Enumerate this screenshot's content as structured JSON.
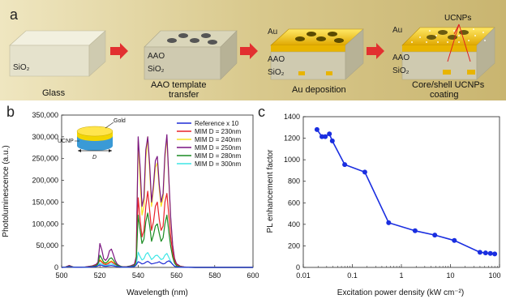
{
  "panel_a": {
    "letter": "a",
    "steps": [
      {
        "caption": [
          "Glass"
        ],
        "labels": [
          "SiO₂"
        ]
      },
      {
        "caption": [
          "AAO template",
          "transfer"
        ],
        "labels": [
          "AAO",
          "SiO₂"
        ]
      },
      {
        "caption": [
          "Au deposition"
        ],
        "labels": [
          "Au",
          "AAO",
          "SiO₂"
        ]
      },
      {
        "caption": [
          "Core/shell UCNPs",
          "coating"
        ],
        "labels": [
          "Au",
          "AAO",
          "SiO₂"
        ],
        "callout": "UCNPs"
      }
    ],
    "colors": {
      "background": "#d7c88f",
      "glass": "#e8e6d2",
      "aao": "#d4d0b2",
      "gold": "#f2c200",
      "arrow": "#e23030"
    }
  },
  "chart_data": [
    {
      "panel": "b",
      "type": "line",
      "xlabel": "Wavelength (nm)",
      "ylabel": "Photoluminescence (a.u.)",
      "xlim": [
        500,
        600
      ],
      "ylim": [
        0,
        350000
      ],
      "xticks": [
        500,
        520,
        540,
        560,
        580,
        600
      ],
      "yticks": [
        0,
        50000,
        100000,
        150000,
        200000,
        250000,
        300000,
        350000
      ],
      "ytick_labels": [
        "0",
        "50,000",
        "100,000",
        "150,000",
        "200,000",
        "250,000",
        "300,000",
        "350,000"
      ],
      "legend_position": "top-right",
      "inset_labels": {
        "gold": "Gold",
        "ucnp": "UCNP",
        "d": "D"
      },
      "x": [
        500,
        502,
        504,
        506,
        508,
        510,
        512,
        514,
        516,
        518,
        519,
        520,
        521,
        522,
        523,
        524,
        525,
        526,
        527,
        528,
        529,
        530,
        531,
        532,
        534,
        536,
        538,
        539,
        540,
        541,
        542,
        543,
        544,
        545,
        546,
        547,
        548,
        549,
        550,
        551,
        552,
        553,
        554,
        555,
        556,
        557,
        558,
        559,
        560,
        562,
        564,
        566,
        570,
        580,
        590,
        600
      ],
      "series": [
        {
          "name": "Reference x 10",
          "color": "#1f2bd6",
          "values": [
            0,
            300,
            1800,
            400,
            100,
            200,
            300,
            800,
            1200,
            2000,
            3500,
            6000,
            4500,
            3000,
            2500,
            3000,
            3800,
            4200,
            3600,
            2500,
            1800,
            1200,
            800,
            500,
            500,
            1000,
            2000,
            6000,
            13000,
            11000,
            8000,
            9000,
            12000,
            14000,
            11000,
            8000,
            9000,
            10000,
            11000,
            13000,
            10000,
            8000,
            9000,
            13000,
            15000,
            12000,
            7000,
            3000,
            1000,
            400,
            200,
            100,
            0,
            0,
            0,
            0
          ]
        },
        {
          "name": "MIM D = 230nm",
          "color": "#e8232b",
          "values": [
            0,
            600,
            3500,
            800,
            200,
            400,
            600,
            1500,
            2800,
            5000,
            9000,
            16000,
            12000,
            8000,
            6500,
            8000,
            11000,
            13000,
            10000,
            7000,
            4000,
            2500,
            1500,
            1000,
            1200,
            2500,
            5000,
            16000,
            160000,
            110000,
            70000,
            85000,
            140000,
            175000,
            130000,
            85000,
            105000,
            140000,
            150000,
            110000,
            85000,
            95000,
            150000,
            170000,
            120000,
            70000,
            35000,
            15000,
            6000,
            2000,
            800,
            300,
            0,
            0,
            0,
            0
          ]
        },
        {
          "name": "MIM D = 240nm",
          "color": "#f5e31f",
          "values": [
            0,
            700,
            4000,
            900,
            200,
            400,
            700,
            1800,
            3200,
            6000,
            11000,
            18000,
            14000,
            9500,
            7500,
            9000,
            13000,
            15000,
            12000,
            8000,
            5000,
            3000,
            1800,
            1200,
            1400,
            3000,
            6000,
            20000,
            290000,
            200000,
            120000,
            140000,
            250000,
            300000,
            220000,
            140000,
            180000,
            230000,
            240000,
            180000,
            140000,
            160000,
            250000,
            300000,
            200000,
            110000,
            50000,
            20000,
            8000,
            2500,
            1000,
            400,
            0,
            0,
            0,
            0
          ]
        },
        {
          "name": "MIM D = 250nm",
          "color": "#7a1580",
          "values": [
            0,
            800,
            4500,
            1000,
            250,
            500,
            800,
            2000,
            3600,
            6800,
            12000,
            55000,
            40000,
            20000,
            16000,
            22000,
            38000,
            42000,
            30000,
            16000,
            8000,
            4500,
            2500,
            1500,
            1600,
            3500,
            7000,
            25000,
            300000,
            230000,
            140000,
            160000,
            270000,
            300000,
            235000,
            150000,
            190000,
            245000,
            255000,
            190000,
            150000,
            170000,
            260000,
            305000,
            205000,
            115000,
            52000,
            21000,
            8500,
            2700,
            1100,
            400,
            0,
            0,
            0,
            0
          ]
        },
        {
          "name": "MIM D = 280nm",
          "color": "#1a8c22",
          "values": [
            0,
            500,
            3000,
            700,
            150,
            300,
            500,
            1200,
            2300,
            4000,
            7500,
            28000,
            20000,
            12000,
            10000,
            13000,
            20000,
            22000,
            17000,
            10000,
            5000,
            3000,
            1800,
            1000,
            1100,
            2200,
            4200,
            12000,
            120000,
            85000,
            55000,
            65000,
            105000,
            125000,
            95000,
            60000,
            75000,
            95000,
            100000,
            78000,
            60000,
            68000,
            100000,
            120000,
            82000,
            48000,
            24000,
            10000,
            4000,
            1500,
            600,
            200,
            0,
            0,
            0,
            0
          ]
        },
        {
          "name": "MIM D = 300nm",
          "color": "#3fe6e6",
          "values": [
            0,
            300,
            1800,
            400,
            100,
            200,
            300,
            700,
            1300,
            2300,
            4000,
            10000,
            7500,
            5000,
            4200,
            5200,
            7000,
            8000,
            6500,
            4200,
            2500,
            1500,
            900,
            600,
            600,
            1200,
            2400,
            6000,
            35000,
            25000,
            17000,
            20000,
            30000,
            34000,
            26000,
            18000,
            22000,
            27000,
            28000,
            23000,
            18000,
            20000,
            28000,
            32000,
            23000,
            14000,
            7000,
            3000,
            1200,
            500,
            200,
            100,
            0,
            0,
            0,
            0
          ]
        }
      ]
    },
    {
      "panel": "c",
      "type": "scatter",
      "xlabel": "Excitation power density (kW cm⁻²)",
      "ylabel": "PL enhancement factor",
      "xscale": "log",
      "xlim": [
        0.01,
        100
      ],
      "ylim": [
        0,
        1400
      ],
      "xticks": [
        0.01,
        0.1,
        1,
        10,
        100
      ],
      "xtick_labels": [
        "0.01",
        "0.1",
        "1",
        "10",
        "100"
      ],
      "yticks": [
        0,
        200,
        400,
        600,
        800,
        1000,
        1200,
        1400
      ],
      "color": "#1a2ee0",
      "x": [
        0.019,
        0.024,
        0.028,
        0.034,
        0.039,
        0.07,
        0.18,
        0.55,
        1.9,
        4.8,
        12,
        40,
        52,
        65,
        80
      ],
      "y": [
        1280,
        1215,
        1215,
        1240,
        1175,
        955,
        885,
        415,
        340,
        300,
        250,
        140,
        135,
        130,
        125
      ]
    }
  ]
}
